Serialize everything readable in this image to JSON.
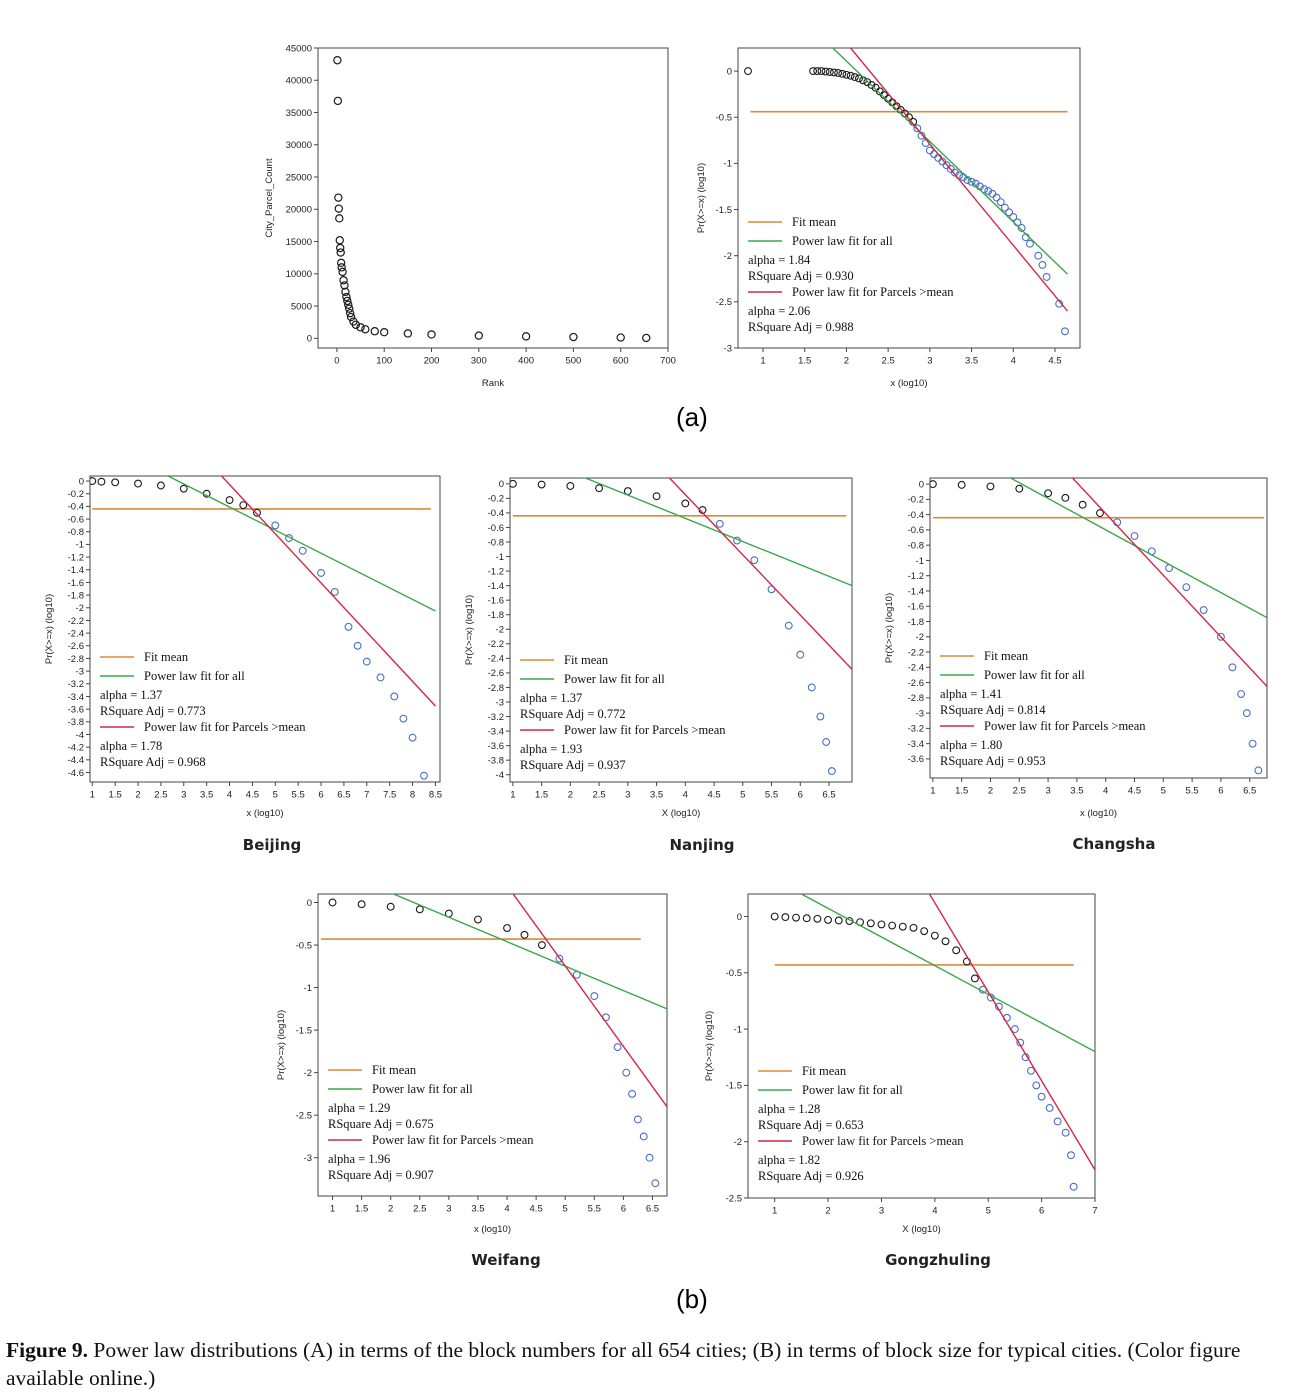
{
  "figure": {
    "panel_a_label": "(a)",
    "panel_b_label": "(b)",
    "caption_label": "Figure 9.",
    "caption_text": "Power law distributions (A) in terms of the block numbers for all 654 cities; (B) in terms of block size for typical cities. (Color figure available online.)"
  },
  "colors": {
    "fit_mean": "#d98a3a",
    "fit_all": "#3aa84a",
    "fit_gt_mean": "#d02848",
    "points_black": "#1a1a1a",
    "points_blue": "#4a6ec8"
  },
  "chart_data": [
    {
      "id": "rank",
      "type": "scatter",
      "title": "",
      "xlabel": "Rank",
      "ylabel": "City_Parcel_Count",
      "xlim": [
        -40,
        700
      ],
      "ylim": [
        -1500,
        45000
      ],
      "xticks": [
        0,
        100,
        200,
        300,
        400,
        500,
        600,
        700
      ],
      "yticks": [
        0,
        5000,
        10000,
        15000,
        20000,
        25000,
        30000,
        35000,
        40000,
        45000
      ],
      "x": [
        1,
        2,
        3,
        4,
        5,
        6,
        7,
        8,
        9,
        10,
        12,
        14,
        16,
        18,
        20,
        22,
        24,
        26,
        28,
        30,
        35,
        40,
        50,
        60,
        80,
        100,
        150,
        200,
        300,
        400,
        500,
        600,
        654
      ],
      "y": [
        43100,
        36800,
        21800,
        20100,
        18600,
        15200,
        14000,
        13300,
        11700,
        11000,
        10300,
        9000,
        8200,
        7200,
        6400,
        5800,
        5200,
        4600,
        3900,
        3300,
        2600,
        2100,
        1700,
        1400,
        1100,
        950,
        750,
        600,
        420,
        300,
        200,
        120,
        60
      ]
    },
    {
      "id": "all-cities",
      "type": "scatter",
      "title": "",
      "xlabel": "x (log10)",
      "ylabel": "Pr(X>=x) (log10)",
      "xlim": [
        0.7,
        4.8
      ],
      "ylim": [
        -3,
        0.25
      ],
      "xticks": [
        1,
        1.5,
        2,
        2.5,
        3,
        3.5,
        4,
        4.5
      ],
      "yticks": [
        0,
        -0.5,
        -1,
        -1.5,
        -2,
        -2.5,
        -3
      ],
      "mean_y": -0.44,
      "mean_x": [
        0.85,
        4.65
      ],
      "points_x": [
        0.82,
        1.6,
        1.65,
        1.7,
        1.75,
        1.8,
        1.85,
        1.9,
        1.95,
        2.0,
        2.05,
        2.1,
        2.15,
        2.2,
        2.25,
        2.3,
        2.35,
        2.4,
        2.45,
        2.5,
        2.55,
        2.6,
        2.65,
        2.7,
        2.75,
        2.8,
        2.85,
        2.9,
        2.95,
        3.0,
        3.05,
        3.1,
        3.15,
        3.2,
        3.25,
        3.3,
        3.35,
        3.4,
        3.45,
        3.5,
        3.55,
        3.6,
        3.65,
        3.7,
        3.75,
        3.8,
        3.85,
        3.9,
        3.95,
        4.0,
        4.05,
        4.1,
        4.15,
        4.2,
        4.3,
        4.35,
        4.4,
        4.55,
        4.62
      ],
      "points_y": [
        0.0,
        0.0,
        0.0,
        0.0,
        -0.005,
        -0.01,
        -0.015,
        -0.02,
        -0.03,
        -0.04,
        -0.05,
        -0.065,
        -0.08,
        -0.1,
        -0.12,
        -0.15,
        -0.18,
        -0.22,
        -0.26,
        -0.3,
        -0.34,
        -0.38,
        -0.42,
        -0.46,
        -0.5,
        -0.55,
        -0.62,
        -0.7,
        -0.78,
        -0.86,
        -0.9,
        -0.94,
        -0.98,
        -1.02,
        -1.06,
        -1.1,
        -1.13,
        -1.15,
        -1.18,
        -1.2,
        -1.22,
        -1.25,
        -1.28,
        -1.3,
        -1.33,
        -1.37,
        -1.42,
        -1.48,
        -1.53,
        -1.58,
        -1.64,
        -1.7,
        -1.8,
        -1.87,
        -2.0,
        -2.1,
        -2.23,
        -2.52,
        -2.82
      ],
      "points_split_x": 2.8,
      "fit_all_line": [
        [
          1.78,
          0.3
        ],
        [
          4.65,
          -2.2
        ]
      ],
      "fit_gt_mean_line": [
        [
          2.05,
          0.25
        ],
        [
          4.65,
          -2.6
        ]
      ],
      "legend": {
        "fit_mean": "Fit mean",
        "fit_all": "Power law fit for all",
        "fit_all_alpha": "alpha = 1.84",
        "fit_all_r2": "RSquare Adj = 0.930",
        "fit_gt_mean": "Power law fit for Parcels >mean",
        "fit_gt_mean_alpha": "alpha = 2.06",
        "fit_gt_mean_r2": "RSquare Adj = 0.988"
      }
    },
    {
      "id": "beijing",
      "type": "scatter",
      "city": "Beijing",
      "xlabel": "x (log10)",
      "ylabel": "Pr(X>=x) (log10)",
      "xlim": [
        0.95,
        8.6
      ],
      "ylim": [
        -4.75,
        0.08
      ],
      "xticks": [
        1,
        1.5,
        2,
        2.5,
        3,
        3.5,
        4,
        4.5,
        5,
        5.5,
        6,
        6.5,
        7,
        7.5,
        8,
        8.5
      ],
      "yticks": [
        0,
        -0.2,
        -0.4,
        -0.6,
        -0.8,
        -1,
        -1.2,
        -1.4,
        -1.6,
        -1.8,
        -2,
        -2.2,
        -2.4,
        -2.6,
        -2.8,
        -3,
        -3.2,
        -3.4,
        -3.6,
        -3.8,
        -4,
        -4.2,
        -4.4,
        -4.6
      ],
      "mean_y": -0.44,
      "mean_x": [
        1.0,
        8.4
      ],
      "points_x": [
        1.0,
        1.2,
        1.5,
        2.0,
        2.5,
        3.0,
        3.5,
        4.0,
        4.3,
        4.6,
        5.0,
        5.3,
        5.6,
        6.0,
        6.3,
        6.6,
        6.8,
        7.0,
        7.3,
        7.6,
        7.8,
        8.0,
        8.25
      ],
      "points_y": [
        0.0,
        -0.01,
        -0.02,
        -0.04,
        -0.07,
        -0.12,
        -0.2,
        -0.3,
        -0.38,
        -0.5,
        -0.7,
        -0.9,
        -1.1,
        -1.45,
        -1.75,
        -2.3,
        -2.6,
        -2.85,
        -3.1,
        -3.4,
        -3.75,
        -4.05,
        -4.65
      ],
      "points_split_x": 4.6,
      "fit_all_line": [
        [
          2.6,
          0.1
        ],
        [
          8.5,
          -2.05
        ]
      ],
      "fit_gt_mean_line": [
        [
          3.8,
          0.1
        ],
        [
          8.5,
          -3.55
        ]
      ],
      "legend": {
        "fit_mean": "Fit mean",
        "fit_all": "Power law fit for all",
        "fit_all_alpha": "alpha = 1.37",
        "fit_all_r2": "RSquare Adj = 0.773",
        "fit_gt_mean": "Power law fit for Parcels >mean",
        "fit_gt_mean_alpha": "alpha = 1.78",
        "fit_gt_mean_r2": "RSquare Adj = 0.968"
      }
    },
    {
      "id": "nanjing",
      "type": "scatter",
      "city": "Nanjing",
      "xlabel": "X (log10)",
      "ylabel": "Pr(X>=x) (log10)",
      "xlim": [
        0.95,
        6.9
      ],
      "ylim": [
        -4.1,
        0.08
      ],
      "xticks": [
        1,
        1.5,
        2,
        2.5,
        3,
        3.5,
        4,
        4.5,
        5,
        5.5,
        6,
        6.5
      ],
      "yticks": [
        0,
        -0.2,
        -0.4,
        -0.6,
        -0.8,
        -1,
        -1.2,
        -1.4,
        -1.6,
        -1.8,
        -2,
        -2.2,
        -2.4,
        -2.6,
        -2.8,
        -3,
        -3.2,
        -3.4,
        -3.6,
        -3.8,
        -4
      ],
      "mean_y": -0.44,
      "mean_x": [
        1.0,
        6.8
      ],
      "points_x": [
        1.0,
        1.5,
        2.0,
        2.5,
        3.0,
        3.5,
        4.0,
        4.3,
        4.6,
        4.9,
        5.2,
        5.5,
        5.8,
        6.0,
        6.2,
        6.35,
        6.45,
        6.55
      ],
      "points_y": [
        0.0,
        -0.01,
        -0.03,
        -0.06,
        -0.1,
        -0.17,
        -0.27,
        -0.36,
        -0.55,
        -0.78,
        -1.05,
        -1.45,
        -1.95,
        -2.35,
        -2.8,
        -3.2,
        -3.55,
        -3.95
      ],
      "points_split_x": 4.3,
      "fit_all_line": [
        [
          2.2,
          0.1
        ],
        [
          6.9,
          -1.4
        ]
      ],
      "fit_gt_mean_line": [
        [
          3.7,
          0.1
        ],
        [
          6.9,
          -2.55
        ]
      ],
      "legend": {
        "fit_mean": "Fit mean",
        "fit_all": "Power law fit for all",
        "fit_all_alpha": "alpha = 1.37",
        "fit_all_r2": "RSquare Adj = 0.772",
        "fit_gt_mean": "Power law fit for Parcels >mean",
        "fit_gt_mean_alpha": "alpha = 1.93",
        "fit_gt_mean_r2": "RSquare Adj = 0.937"
      }
    },
    {
      "id": "changsha",
      "type": "scatter",
      "city": "Changsha",
      "xlabel": "x (log10)",
      "ylabel": "Pr(X>=x) (log10)",
      "xlim": [
        0.95,
        6.8
      ],
      "ylim": [
        -3.85,
        0.08
      ],
      "xticks": [
        1,
        1.5,
        2,
        2.5,
        3,
        3.5,
        4,
        4.5,
        5,
        5.5,
        6,
        6.5
      ],
      "yticks": [
        0,
        -0.2,
        -0.4,
        -0.6,
        -0.8,
        -1,
        -1.2,
        -1.4,
        -1.6,
        -1.8,
        -2,
        -2.2,
        -2.4,
        -2.6,
        -2.8,
        -3,
        -3.2,
        -3.4,
        -3.6
      ],
      "mean_y": -0.44,
      "mean_x": [
        1.0,
        6.75
      ],
      "points_x": [
        1.0,
        1.5,
        2.0,
        2.5,
        3.0,
        3.3,
        3.6,
        3.9,
        4.2,
        4.5,
        4.8,
        5.1,
        5.4,
        5.7,
        6.0,
        6.2,
        6.35,
        6.45,
        6.55,
        6.65
      ],
      "points_y": [
        0.0,
        -0.01,
        -0.03,
        -0.06,
        -0.12,
        -0.18,
        -0.27,
        -0.38,
        -0.5,
        -0.68,
        -0.88,
        -1.1,
        -1.35,
        -1.65,
        -2.0,
        -2.4,
        -2.75,
        -3.0,
        -3.4,
        -3.75
      ],
      "points_split_x": 3.9,
      "fit_all_line": [
        [
          2.3,
          0.1
        ],
        [
          6.8,
          -1.75
        ]
      ],
      "fit_gt_mean_line": [
        [
          3.4,
          0.1
        ],
        [
          6.8,
          -2.65
        ]
      ],
      "legend": {
        "fit_mean": "Fit mean",
        "fit_all": "Power law fit for all",
        "fit_all_alpha": "alpha = 1.41",
        "fit_all_r2": "RSquare Adj = 0.814",
        "fit_gt_mean": "Power law fit for Parcels >mean",
        "fit_gt_mean_alpha": "alpha = 1.80",
        "fit_gt_mean_r2": "RSquare Adj = 0.953"
      }
    },
    {
      "id": "weifang",
      "type": "scatter",
      "city": "Weifang",
      "xlabel": "x (log10)",
      "ylabel": "Pr(X>=x) (log10)",
      "xlim": [
        0.75,
        6.75
      ],
      "ylim": [
        -3.45,
        0.1
      ],
      "xticks": [
        1,
        1.5,
        2,
        2.5,
        3,
        3.5,
        4,
        4.5,
        5,
        5.5,
        6,
        6.5
      ],
      "yticks": [
        0,
        -0.5,
        -1,
        -1.5,
        -2,
        -2.5,
        -3
      ],
      "mean_y": -0.43,
      "mean_x": [
        0.8,
        6.3
      ],
      "points_x": [
        1.0,
        1.5,
        2.0,
        2.5,
        3.0,
        3.5,
        4.0,
        4.3,
        4.6,
        4.9,
        5.2,
        5.5,
        5.7,
        5.9,
        6.05,
        6.15,
        6.25,
        6.35,
        6.45,
        6.55
      ],
      "points_y": [
        0.0,
        -0.02,
        -0.05,
        -0.08,
        -0.13,
        -0.2,
        -0.3,
        -0.38,
        -0.5,
        -0.66,
        -0.85,
        -1.1,
        -1.35,
        -1.7,
        -2.0,
        -2.25,
        -2.55,
        -2.75,
        -3.0,
        -3.3
      ],
      "points_split_x": 4.6,
      "fit_all_line": [
        [
          1.7,
          0.2
        ],
        [
          6.75,
          -1.25
        ]
      ],
      "fit_gt_mean_line": [
        [
          4.0,
          0.2
        ],
        [
          6.75,
          -2.4
        ]
      ],
      "legend": {
        "fit_mean": "Fit mean",
        "fit_all": "Power law fit for all",
        "fit_all_alpha": "alpha = 1.29",
        "fit_all_r2": "RSquare Adj = 0.675",
        "fit_gt_mean": "Power law fit for Parcels >mean",
        "fit_gt_mean_alpha": "alpha = 1.96",
        "fit_gt_mean_r2": "RSquare Adj = 0.907"
      }
    },
    {
      "id": "gongzhuling",
      "type": "scatter",
      "city": "Gongzhuling",
      "xlabel": "X (log10)",
      "ylabel": "Pr(X>=x) (log10)",
      "xlim": [
        0.5,
        7.0
      ],
      "ylim": [
        -2.5,
        0.2
      ],
      "xticks": [
        1,
        2,
        3,
        4,
        5,
        6,
        7
      ],
      "yticks": [
        0,
        -0.5,
        -1,
        -1.5,
        -2,
        -2.5
      ],
      "mean_y": -0.43,
      "mean_x": [
        1.0,
        6.6
      ],
      "points_x": [
        1.0,
        1.2,
        1.4,
        1.6,
        1.8,
        2.0,
        2.2,
        2.4,
        2.6,
        2.8,
        3.0,
        3.2,
        3.4,
        3.6,
        3.8,
        4.0,
        4.2,
        4.4,
        4.6,
        4.75,
        4.9,
        5.05,
        5.2,
        5.35,
        5.5,
        5.6,
        5.7,
        5.8,
        5.9,
        6.0,
        6.15,
        6.3,
        6.45,
        6.55,
        6.6
      ],
      "points_y": [
        0.0,
        -0.005,
        -0.01,
        -0.015,
        -0.02,
        -0.03,
        -0.035,
        -0.04,
        -0.05,
        -0.06,
        -0.07,
        -0.08,
        -0.09,
        -0.1,
        -0.13,
        -0.17,
        -0.22,
        -0.3,
        -0.4,
        -0.55,
        -0.65,
        -0.72,
        -0.8,
        -0.9,
        -1.0,
        -1.12,
        -1.25,
        -1.37,
        -1.5,
        -1.6,
        -1.7,
        -1.82,
        -1.92,
        -2.12,
        -2.4
      ],
      "points_split_x": 4.75,
      "fit_all_line": [
        [
          1.5,
          0.2
        ],
        [
          7.0,
          -1.2
        ]
      ],
      "fit_gt_mean_line": [
        [
          3.9,
          0.2
        ],
        [
          7.0,
          -2.25
        ]
      ],
      "legend": {
        "fit_mean": "Fit mean",
        "fit_all": "Power law fit for all",
        "fit_all_alpha": "alpha = 1.28",
        "fit_all_r2": "RSquare Adj = 0.653",
        "fit_gt_mean": "Power law fit for Parcels >mean",
        "fit_gt_mean_alpha": "alpha = 1.82",
        "fit_gt_mean_r2": "RSquare Adj = 0.926"
      }
    }
  ]
}
